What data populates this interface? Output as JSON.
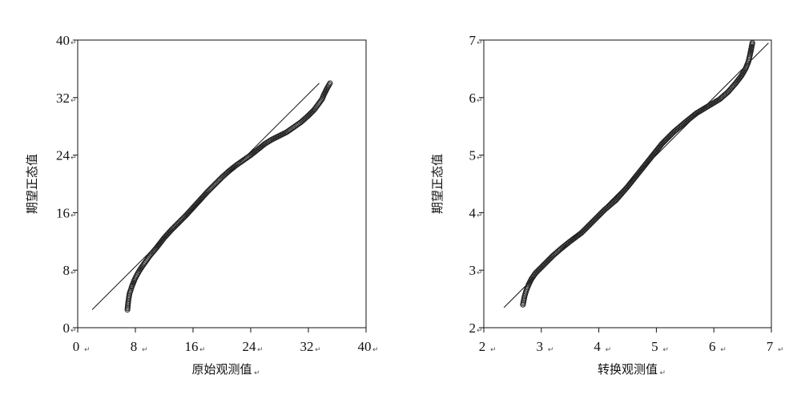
{
  "chart_data": [
    {
      "type": "scatter",
      "title": "",
      "xlabel": "原始观测值",
      "ylabel": "期望正态值",
      "xlim": [
        0,
        40
      ],
      "ylim": [
        0,
        40
      ],
      "xticks": [
        "0",
        "8",
        "16",
        "24",
        "32",
        "40"
      ],
      "yticks": [
        "0",
        "8",
        "16",
        "24",
        "32",
        "40"
      ],
      "grid": false,
      "reference_line": {
        "x": [
          2,
          33.5
        ],
        "y": [
          2.5,
          34
        ]
      },
      "series": [
        {
          "values": [
            [
              6.9,
              2.5
            ],
            [
              7.0,
              3.5
            ],
            [
              7.1,
              4.2
            ],
            [
              7.2,
              4.8
            ],
            [
              7.35,
              5.2
            ],
            [
              7.5,
              5.7
            ],
            [
              7.7,
              6.2
            ],
            [
              7.9,
              6.7
            ],
            [
              8.2,
              7.3
            ],
            [
              8.6,
              8.0
            ],
            [
              9.0,
              8.6
            ],
            [
              9.5,
              9.3
            ],
            [
              10.0,
              10.0
            ],
            [
              11.0,
              11.2
            ],
            [
              12.0,
              12.5
            ],
            [
              13.0,
              13.6
            ],
            [
              14.0,
              14.6
            ],
            [
              15.0,
              15.6
            ],
            [
              16.0,
              16.7
            ],
            [
              17.0,
              17.8
            ],
            [
              18.0,
              18.9
            ],
            [
              19.0,
              19.9
            ],
            [
              20.0,
              20.9
            ],
            [
              21.0,
              21.8
            ],
            [
              22.0,
              22.6
            ],
            [
              23.0,
              23.3
            ],
            [
              24.0,
              24.0
            ],
            [
              25.0,
              24.8
            ],
            [
              26.0,
              25.6
            ],
            [
              27.0,
              26.2
            ],
            [
              28.0,
              26.7
            ],
            [
              29.0,
              27.2
            ],
            [
              30.0,
              27.9
            ],
            [
              31.0,
              28.6
            ],
            [
              32.0,
              29.5
            ],
            [
              32.8,
              30.3
            ],
            [
              33.4,
              31.1
            ],
            [
              33.9,
              31.8
            ],
            [
              34.2,
              32.5
            ],
            [
              34.6,
              33.3
            ],
            [
              35.0,
              34.0
            ]
          ]
        }
      ]
    },
    {
      "type": "scatter",
      "title": "",
      "xlabel": "转换观测值",
      "ylabel": "期望正态值",
      "xlim": [
        2,
        7
      ],
      "ylim": [
        2,
        7
      ],
      "xticks": [
        "2",
        "3",
        "4",
        "5",
        "6",
        "7"
      ],
      "yticks": [
        "2",
        "3",
        "4",
        "5",
        "6",
        "7"
      ],
      "grid": false,
      "reference_line": {
        "x": [
          2.35,
          6.95
        ],
        "y": [
          2.35,
          6.95
        ]
      },
      "series": [
        {
          "values": [
            [
              2.68,
              2.4
            ],
            [
              2.71,
              2.55
            ],
            [
              2.74,
              2.65
            ],
            [
              2.78,
              2.75
            ],
            [
              2.83,
              2.85
            ],
            [
              2.9,
              2.95
            ],
            [
              3.0,
              3.05
            ],
            [
              3.1,
              3.15
            ],
            [
              3.2,
              3.25
            ],
            [
              3.35,
              3.38
            ],
            [
              3.5,
              3.5
            ],
            [
              3.7,
              3.65
            ],
            [
              3.9,
              3.85
            ],
            [
              4.1,
              4.05
            ],
            [
              4.3,
              4.22
            ],
            [
              4.5,
              4.45
            ],
            [
              4.7,
              4.7
            ],
            [
              4.9,
              4.95
            ],
            [
              5.1,
              5.2
            ],
            [
              5.3,
              5.4
            ],
            [
              5.5,
              5.57
            ],
            [
              5.7,
              5.73
            ],
            [
              5.9,
              5.85
            ],
            [
              6.1,
              5.97
            ],
            [
              6.25,
              6.1
            ],
            [
              6.38,
              6.25
            ],
            [
              6.48,
              6.38
            ],
            [
              6.55,
              6.5
            ],
            [
              6.6,
              6.62
            ],
            [
              6.63,
              6.75
            ],
            [
              6.67,
              6.95
            ]
          ]
        }
      ]
    }
  ]
}
